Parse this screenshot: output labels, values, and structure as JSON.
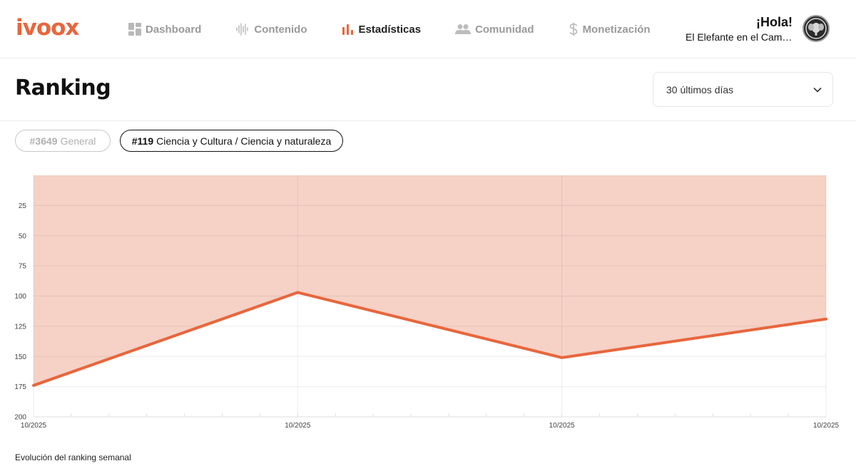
{
  "header": {
    "logo": "ivoox",
    "nav": [
      {
        "label": "Dashboard",
        "icon": "dashboard-icon",
        "active": false
      },
      {
        "label": "Contenido",
        "icon": "waveform-icon",
        "active": false
      },
      {
        "label": "Estadísticas",
        "icon": "bar-chart-icon",
        "active": true
      },
      {
        "label": "Comunidad",
        "icon": "people-icon",
        "active": false
      },
      {
        "label": "Monetización",
        "icon": "dollar-icon",
        "active": false
      }
    ],
    "greeting": "¡Hola!",
    "user_name": "El Elefante en el Campo"
  },
  "page": {
    "title": "Ranking",
    "range_selected": "30 últimos días"
  },
  "pills": {
    "general": {
      "rank": "#3649",
      "label": "General"
    },
    "category": {
      "rank": "#119",
      "label": "Ciencia y Cultura / Ciencia y naturaleza"
    }
  },
  "colors": {
    "accent": "#e8663d",
    "fill": "#f6d1c6"
  },
  "chart_data": {
    "type": "area",
    "x": [
      "10/2025",
      "10/2025",
      "10/2025",
      "10/2025"
    ],
    "values": [
      174,
      97,
      151,
      119
    ],
    "ylim": [
      0,
      200
    ],
    "y_inverted": true,
    "yticks": [
      25,
      50,
      75,
      100,
      125,
      150,
      175,
      200
    ],
    "grid": true
  },
  "footnote": "Evolución del ranking semanal"
}
